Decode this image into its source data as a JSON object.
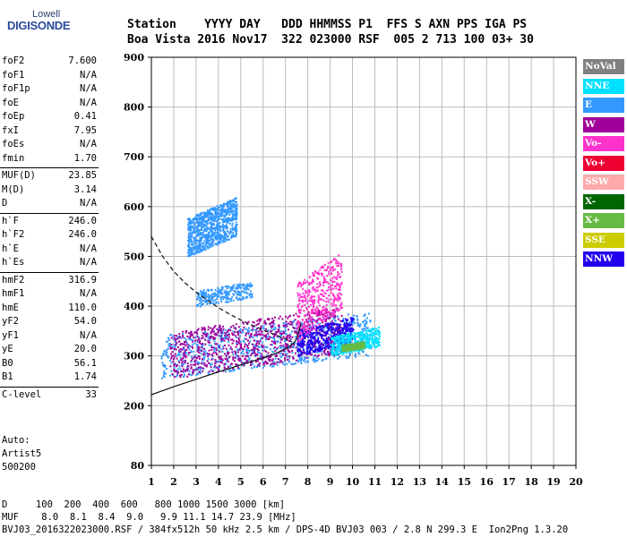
{
  "logo": {
    "brand": "Lowell",
    "product": "DIGISONDE"
  },
  "header": {
    "line1": "Station    YYYY DAY   DDD HHMMSS P1  FFS S AXN PPS IGA PS",
    "line2": "Boa Vista 2016 Nov17  322 023000 RSF  005 2 713 100 03+ 30"
  },
  "params": {
    "group1": [
      {
        "name": "foF2",
        "value": "7.600"
      },
      {
        "name": "foF1",
        "value": "N/A"
      },
      {
        "name": "foF1p",
        "value": "N/A"
      },
      {
        "name": "foE",
        "value": "N/A"
      },
      {
        "name": "foEp",
        "value": "0.41"
      },
      {
        "name": "fxI",
        "value": "7.95"
      },
      {
        "name": "foEs",
        "value": "N/A"
      },
      {
        "name": "fmin",
        "value": "1.70"
      }
    ],
    "group2": [
      {
        "name": "MUF(D)",
        "value": "23.85"
      },
      {
        "name": "M(D)",
        "value": "3.14"
      },
      {
        "name": "D",
        "value": "N/A"
      }
    ],
    "group3": [
      {
        "name": "h`F",
        "value": "246.0"
      },
      {
        "name": "h`F2",
        "value": "246.0"
      },
      {
        "name": "h`E",
        "value": "N/A"
      },
      {
        "name": "h`Es",
        "value": "N/A"
      }
    ],
    "group4": [
      {
        "name": "hmF2",
        "value": "316.9"
      },
      {
        "name": "hmF1",
        "value": "N/A"
      },
      {
        "name": "hmE",
        "value": "110.0"
      },
      {
        "name": "yF2",
        "value": "54.0"
      },
      {
        "name": "yF1",
        "value": "N/A"
      },
      {
        "name": "yE",
        "value": "20.0"
      },
      {
        "name": "B0",
        "value": "56.1"
      },
      {
        "name": "B1",
        "value": "1.74"
      }
    ],
    "group5": [
      {
        "name": "C-level",
        "value": "33"
      }
    ]
  },
  "auto": {
    "line1": "Auto:",
    "line2": "Artist5",
    "line3": "500200"
  },
  "legend": [
    {
      "label": "NoVal",
      "color": "#808080"
    },
    {
      "label": "NNE",
      "color": "#00e0ff"
    },
    {
      "label": "E",
      "color": "#3399ff"
    },
    {
      "label": "W",
      "color": "#a0009a"
    },
    {
      "label": "Vo-",
      "color": "#ff33cc"
    },
    {
      "label": "Vo+",
      "color": "#ee0033"
    },
    {
      "label": "SSW",
      "color": "#ffaaaa"
    },
    {
      "label": "X-",
      "color": "#006600"
    },
    {
      "label": "X+",
      "color": "#66bb44"
    },
    {
      "label": "SSE",
      "color": "#cccc00"
    },
    {
      "label": "NNW",
      "color": "#2200ee"
    }
  ],
  "footer": {
    "line1": "D     100  200  400  600   800 1000 1500 3000 [km]",
    "line2": "MUF    8.0  8.1  8.4  9.0   9.9 11.1 14.7 23.9 [MHz]",
    "line3": "BVJ03_2016322023000.RSF / 384fx512h 50 kHz 2.5 km / DPS-4D BVJ03 003 / 2.8 N 299.3 E  Ion2Png 1.3.20"
  },
  "chart_data": {
    "type": "scatter",
    "title": "",
    "xlabel": "",
    "ylabel": "",
    "xlim": [
      1,
      20
    ],
    "ylim": [
      80,
      900
    ],
    "xticks": [
      1,
      2,
      3,
      4,
      5,
      6,
      7,
      8,
      9,
      10,
      11,
      12,
      13,
      14,
      15,
      16,
      17,
      18,
      19,
      20
    ],
    "yticks": [
      80,
      200,
      300,
      400,
      500,
      600,
      700,
      800,
      900
    ],
    "grid": true,
    "legend_position": "right",
    "curves": {
      "profile_dashed": [
        [
          1.0,
          540
        ],
        [
          1.5,
          500
        ],
        [
          2.0,
          470
        ],
        [
          2.5,
          447
        ],
        [
          3.0,
          428
        ],
        [
          3.5,
          412
        ],
        [
          4.0,
          397
        ],
        [
          4.5,
          384
        ],
        [
          5.0,
          372
        ],
        [
          5.5,
          362
        ],
        [
          6.0,
          352
        ],
        [
          6.5,
          343
        ],
        [
          7.0,
          334
        ],
        [
          7.3,
          328
        ]
      ],
      "trace_solid": [
        [
          1.0,
          222
        ],
        [
          1.5,
          230
        ],
        [
          2.0,
          238
        ],
        [
          3.0,
          253
        ],
        [
          4.0,
          268
        ],
        [
          5.0,
          282
        ],
        [
          6.0,
          296
        ],
        [
          6.5,
          304
        ],
        [
          7.0,
          314
        ],
        [
          7.2,
          320
        ],
        [
          7.4,
          327
        ],
        [
          7.5,
          336
        ],
        [
          7.6,
          350
        ],
        [
          7.7,
          365
        ]
      ]
    },
    "scatter_regions": [
      {
        "series": "E",
        "x": [
          1.4,
          10.8
        ],
        "y": [
          255,
          390
        ],
        "x2": [
          3.0,
          5.5
        ],
        "y2": [
          400,
          450
        ]
      },
      {
        "series": "W",
        "x": [
          1.8,
          9.5
        ],
        "y": [
          255,
          400
        ]
      },
      {
        "series": "NNW",
        "x": [
          7.5,
          10.0
        ],
        "y": [
          300,
          380
        ]
      },
      {
        "series": "Vo-",
        "x": [
          7.5,
          9.5
        ],
        "y": [
          330,
          510
        ]
      },
      {
        "series": "NNE",
        "x": [
          9.0,
          11.2
        ],
        "y": [
          300,
          360
        ]
      },
      {
        "series": "X+",
        "x": [
          9.5,
          10.5
        ],
        "y": [
          310,
          330
        ]
      },
      {
        "series": "E",
        "x": [
          2.6,
          4.8
        ],
        "y": [
          500,
          620
        ]
      }
    ]
  }
}
